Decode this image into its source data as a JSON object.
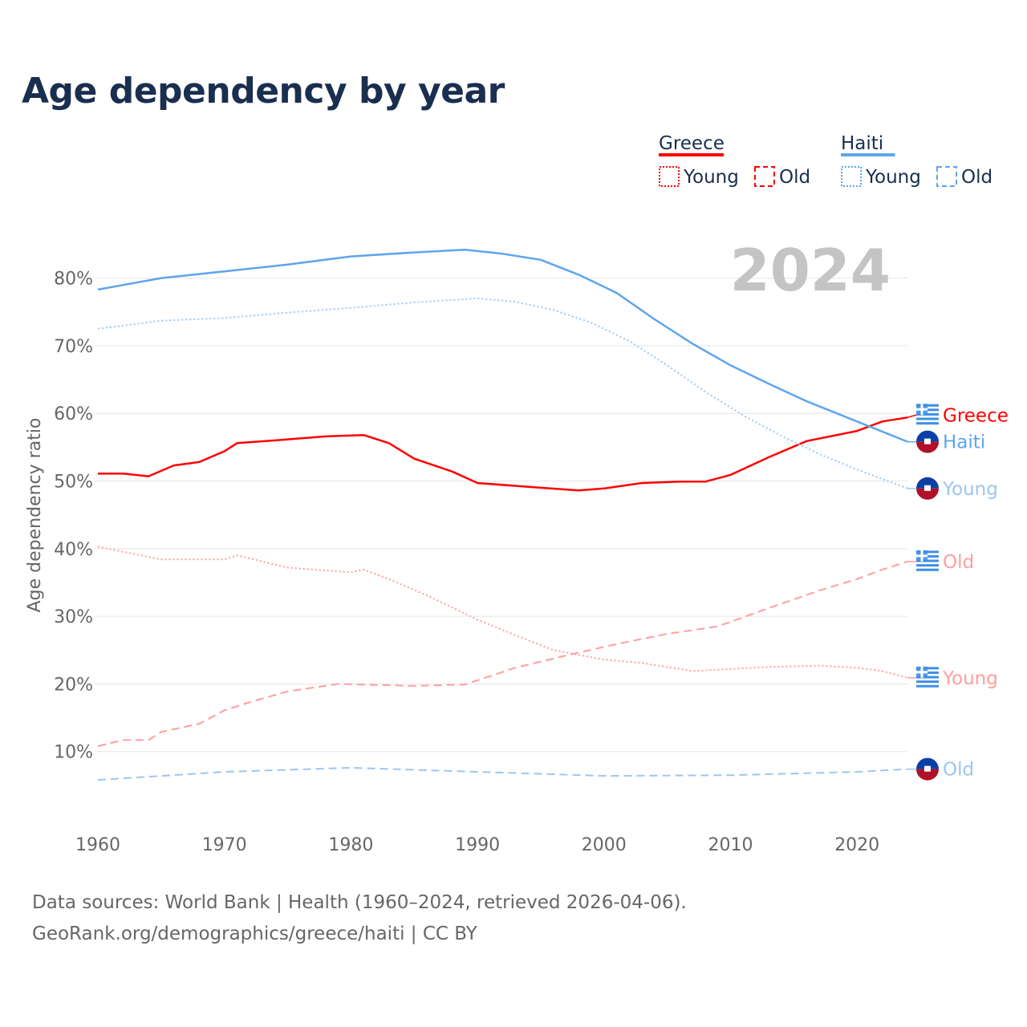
{
  "title": "Age dependency by year",
  "source_line1": "Data sources: World Bank | Health (1960–2024, retrieved 2026-04-06).",
  "source_line2": "GeoRank.org/demographics/greece/haiti | CC BY",
  "chart_data": {
    "type": "line",
    "title": "Age dependency by year",
    "xlabel": "",
    "ylabel": "Age dependency ratio",
    "xlim": [
      1960,
      2024
    ],
    "ylim": [
      0,
      85
    ],
    "xticks": [
      1960,
      1970,
      1980,
      1990,
      2000,
      2010,
      2020
    ],
    "yticks": [
      10,
      20,
      30,
      40,
      50,
      60,
      70,
      80
    ],
    "ytick_suffix": "%",
    "grid": true,
    "year_watermark": "2024",
    "legend": {
      "placement": "top-right",
      "groups": [
        {
          "country": "Greece",
          "color": "#ff0000",
          "items": [
            "Young",
            "Old"
          ]
        },
        {
          "country": "Haiti",
          "color": "#5ea5ec",
          "items": [
            "Young",
            "Old"
          ]
        }
      ]
    },
    "series": [
      {
        "name": "Greece",
        "country": "greece",
        "kind": "total",
        "label": "Greece",
        "color": "#ff0000",
        "style": "solid",
        "x": [
          1960,
          1962,
          1964,
          1966,
          1968,
          1970,
          1971,
          1974,
          1978,
          1981,
          1983,
          1985,
          1988,
          1990,
          1995,
          1998,
          2000,
          2003,
          2006,
          2008,
          2010,
          2013,
          2016,
          2020,
          2022,
          2024
        ],
        "y": [
          51.1,
          51.1,
          50.7,
          52.3,
          52.8,
          54.4,
          55.6,
          56.0,
          56.6,
          56.8,
          55.6,
          53.3,
          51.4,
          49.7,
          49.0,
          48.6,
          48.9,
          49.7,
          49.9,
          49.9,
          50.9,
          53.5,
          55.9,
          57.4,
          58.8,
          59.4
        ]
      },
      {
        "name": "Haiti",
        "country": "haiti",
        "kind": "total",
        "label": "Haiti",
        "color": "#5ea5ec",
        "style": "solid",
        "x": [
          1960,
          1965,
          1970,
          1975,
          1980,
          1985,
          1989,
          1992,
          1995,
          1998,
          2001,
          2004,
          2007,
          2010,
          2013,
          2016,
          2020,
          2024
        ],
        "y": [
          78.3,
          80.0,
          81.0,
          82.0,
          83.2,
          83.8,
          84.2,
          83.6,
          82.7,
          80.5,
          77.8,
          73.9,
          70.3,
          67.1,
          64.4,
          61.8,
          58.8,
          55.8
        ]
      },
      {
        "name": "Haiti Young",
        "country": "haiti",
        "kind": "young",
        "label": "Young",
        "color": "#9dc6f0",
        "style": "dotted",
        "x": [
          1960,
          1965,
          1970,
          1975,
          1980,
          1985,
          1990,
          1993,
          1996,
          1999,
          2002,
          2005,
          2008,
          2011,
          2014,
          2017,
          2020,
          2024
        ],
        "y": [
          72.5,
          73.7,
          74.1,
          74.9,
          75.6,
          76.4,
          77.0,
          76.5,
          75.3,
          73.4,
          70.7,
          67.1,
          63.2,
          59.7,
          56.7,
          54.0,
          51.7,
          48.9
        ]
      },
      {
        "name": "Greece Old",
        "country": "greece",
        "kind": "old",
        "label": "Old",
        "color": "#ff9e9e",
        "style": "dashed",
        "x": [
          1960,
          1962,
          1964,
          1965,
          1968,
          1970,
          1972,
          1975,
          1979,
          1985,
          1989,
          1993,
          1997,
          2001,
          2005,
          2009,
          2013,
          2017,
          2020,
          2022,
          2024
        ],
        "y": [
          10.8,
          11.7,
          11.7,
          12.9,
          14.1,
          16.1,
          17.3,
          18.9,
          20.0,
          19.7,
          19.9,
          22.4,
          24.2,
          25.9,
          27.4,
          28.5,
          31.2,
          33.8,
          35.5,
          36.9,
          38.1
        ]
      },
      {
        "name": "Greece Young",
        "country": "greece",
        "kind": "young",
        "label": "Young",
        "color": "#ff9e9e",
        "style": "dotted",
        "x": [
          1960,
          1965,
          1970,
          1971,
          1975,
          1980,
          1981,
          1983,
          1986,
          1990,
          1993,
          1996,
          2000,
          2003,
          2007,
          2010,
          2013,
          2017,
          2020,
          2022,
          2024
        ],
        "y": [
          40.3,
          38.4,
          38.4,
          39.0,
          37.2,
          36.5,
          36.9,
          35.5,
          33.1,
          29.5,
          27.2,
          25.0,
          23.6,
          23.1,
          21.9,
          22.2,
          22.5,
          22.7,
          22.4,
          21.9,
          20.9
        ]
      },
      {
        "name": "Haiti Old",
        "country": "haiti",
        "kind": "old",
        "label": "Old",
        "color": "#9dc6f0",
        "style": "dashed",
        "x": [
          1960,
          1970,
          1980,
          1990,
          2000,
          2010,
          2020,
          2024
        ],
        "y": [
          5.8,
          7.0,
          7.6,
          7.0,
          6.4,
          6.5,
          7.0,
          7.4
        ]
      }
    ]
  }
}
